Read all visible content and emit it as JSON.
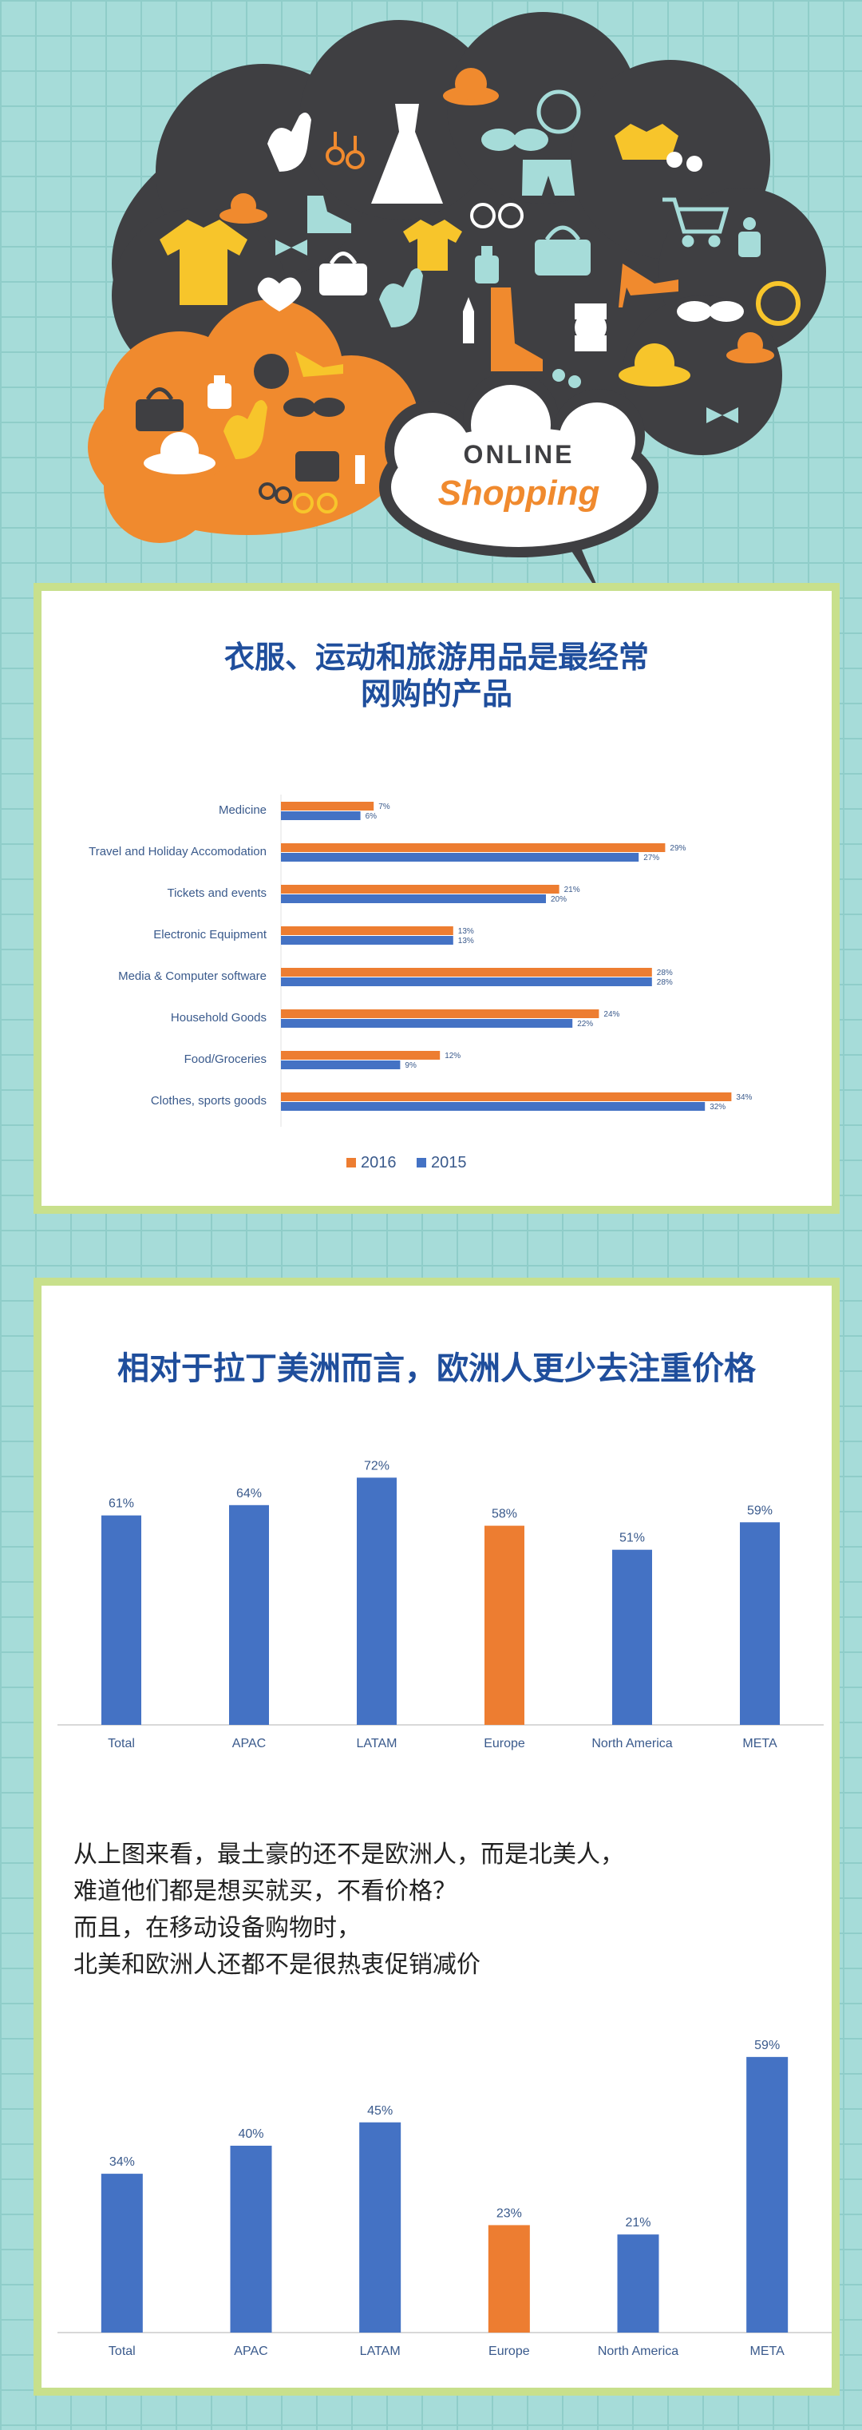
{
  "hero": {
    "bubble_line1": "ONLINE",
    "bubble_line2": "Shopping"
  },
  "chart_data": [
    {
      "type": "bar",
      "orientation": "horizontal",
      "title": "衣服、运动和旅游用品是最经常网购的产品",
      "title_lines": [
        "衣服、运动和旅游用品是最经常",
        "网购的产品"
      ],
      "categories": [
        "Medicine",
        "Travel and Holiday Accomodation",
        "Tickets and events",
        "Electronic Equipment",
        "Media & Computer software",
        "Household Goods",
        "Food/Groceries",
        "Clothes, sports goods"
      ],
      "series": [
        {
          "name": "2016",
          "color": "#ed7d31",
          "values": [
            7,
            29,
            21,
            13,
            28,
            24,
            12,
            34
          ]
        },
        {
          "name": "2015",
          "color": "#4472c4",
          "values": [
            6,
            27,
            20,
            13,
            28,
            22,
            9,
            32
          ]
        }
      ],
      "value_suffix": "%",
      "legend_position": "bottom",
      "grid": false
    },
    {
      "type": "bar",
      "title": "相对于拉丁美洲而言，欧洲人更少去注重价格",
      "categories": [
        "Total",
        "APAC",
        "LATAM",
        "Europe",
        "North America",
        "META"
      ],
      "values": [
        61,
        64,
        72,
        58,
        51,
        59
      ],
      "value_suffix": "%",
      "bar_colors": [
        "#4472c4",
        "#4472c4",
        "#4472c4",
        "#ed7d31",
        "#4472c4",
        "#4472c4"
      ],
      "grid": false
    },
    {
      "type": "bar",
      "categories": [
        "Total",
        "APAC",
        "LATAM",
        "Europe",
        "North America",
        "META"
      ],
      "values": [
        34,
        40,
        45,
        23,
        21,
        59
      ],
      "value_suffix": "%",
      "bar_colors": [
        "#4472c4",
        "#4472c4",
        "#4472c4",
        "#ed7d31",
        "#4472c4",
        "#4472c4"
      ],
      "grid": false
    }
  ],
  "note": {
    "lines": [
      "从上图来看，最土豪的还不是欧洲人，而是北美人，",
      "难道他们都是想买就买，不看价格？",
      "而且，在移动设备购物时，",
      "北美和欧洲人还都不是很热衷促销减价"
    ]
  },
  "colors": {
    "background": "#a6dcd9",
    "panel_border": "#c8e08c",
    "title": "#1f4e9c",
    "orange": "#ed7d31",
    "blue": "#4472c4",
    "cloud_dark": "#3f3f42",
    "cloud_orange": "#f08a2e"
  },
  "icons": [
    "glove-icon",
    "dress-icon",
    "handbag-icon",
    "shoe-icon",
    "sunglasses-icon",
    "watch-icon",
    "hat-icon",
    "shopping-cart-icon",
    "earring-icon",
    "lipstick-icon",
    "boot-icon",
    "bowtie-icon",
    "heart-icon",
    "high-heel-icon",
    "perfume-icon",
    "shirt-icon"
  ]
}
